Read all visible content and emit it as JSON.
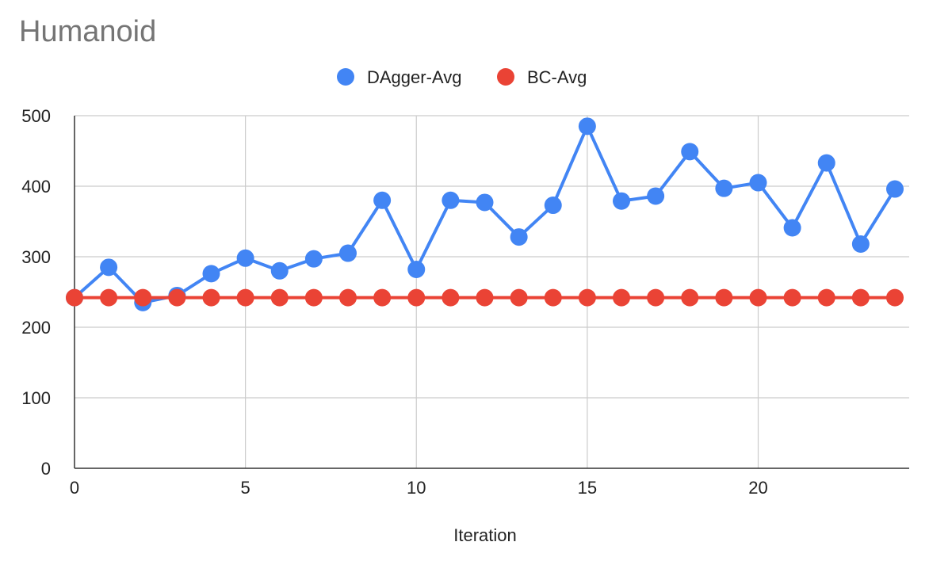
{
  "chart_data": {
    "type": "line",
    "title": "Humanoid",
    "xlabel": "Iteration",
    "ylabel": "",
    "xlim": [
      0,
      24
    ],
    "ylim": [
      0,
      500
    ],
    "x_ticks": [
      0,
      5,
      10,
      15,
      20
    ],
    "y_ticks": [
      0,
      100,
      200,
      300,
      400,
      500
    ],
    "grid": true,
    "legend": "top-center",
    "x": [
      0,
      1,
      2,
      3,
      4,
      5,
      6,
      7,
      8,
      9,
      10,
      11,
      12,
      13,
      14,
      15,
      16,
      17,
      18,
      19,
      20,
      21,
      22,
      23,
      24
    ],
    "series": [
      {
        "name": "DAgger-Avg",
        "color": "#4285F4",
        "values": [
          242,
          285,
          235,
          245,
          276,
          298,
          280,
          297,
          305,
          380,
          282,
          380,
          377,
          328,
          373,
          485,
          379,
          386,
          449,
          397,
          405,
          341,
          433,
          318,
          396
        ]
      },
      {
        "name": "BC-Avg",
        "color": "#EA4335",
        "values": [
          242,
          242,
          242,
          242,
          242,
          242,
          242,
          242,
          242,
          242,
          242,
          242,
          242,
          242,
          242,
          242,
          242,
          242,
          242,
          242,
          242,
          242,
          242,
          242,
          242
        ]
      }
    ]
  }
}
